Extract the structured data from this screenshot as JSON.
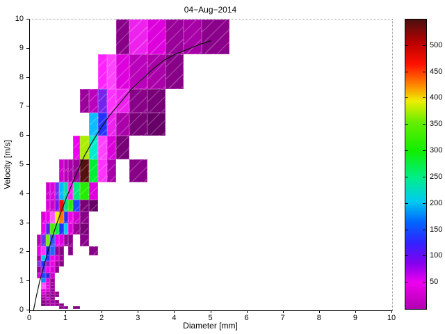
{
  "figure": {
    "title": "04−Aug−2014",
    "background": "#ffffff"
  },
  "axes": {
    "x": {
      "label": "Diameter [mm]",
      "range": [
        0,
        10
      ],
      "ticks": [
        0,
        1,
        2,
        3,
        4,
        5,
        6,
        7,
        8,
        9,
        10
      ]
    },
    "y": {
      "label": "Velocity [m/s]",
      "range": [
        0,
        10
      ],
      "ticks": [
        0,
        1,
        2,
        3,
        4,
        5,
        6,
        7,
        8,
        9,
        10
      ]
    }
  },
  "colorbar": {
    "range": [
      0,
      550
    ],
    "tick_values": [
      50,
      100,
      150,
      200,
      250,
      300,
      350,
      400,
      450,
      500
    ],
    "gradient_stops": [
      [
        0,
        "#B000B0"
      ],
      [
        50,
        "#EE00EE"
      ],
      [
        85,
        "#8800EE"
      ],
      [
        125,
        "#3322FF"
      ],
      [
        165,
        "#0066FF"
      ],
      [
        205,
        "#00CCEE"
      ],
      [
        250,
        "#00EE88"
      ],
      [
        300,
        "#11EE00"
      ],
      [
        355,
        "#66EE00"
      ],
      [
        395,
        "#EEEE00"
      ],
      [
        425,
        "#FF8800"
      ],
      [
        465,
        "#FF1100"
      ],
      [
        505,
        "#BB0000"
      ],
      [
        550,
        "#4A1010"
      ]
    ]
  },
  "chart_data": {
    "type": "heatmap",
    "title": "04−Aug−2014",
    "xlabel": "Diameter [mm]",
    "ylabel": "Velocity [m/s]",
    "xlim": [
      0,
      10
    ],
    "ylim": [
      0,
      10
    ],
    "value_range": [
      0,
      550
    ],
    "grid": "off",
    "legend": "colorbar-right",
    "d_bounds": [
      0.062,
      0.187,
      0.312,
      0.437,
      0.562,
      0.687,
      0.812,
      0.937,
      1.062,
      1.187,
      1.375,
      1.625,
      1.875,
      2.125,
      2.375,
      2.75,
      3.25,
      3.75,
      4.25,
      4.75,
      5.5
    ],
    "v_bounds": [
      0.05,
      0.15,
      0.25,
      0.35,
      0.45,
      0.55,
      0.65,
      0.75,
      0.85,
      0.95,
      1.1,
      1.3,
      1.5,
      1.7,
      1.9,
      2.2,
      2.6,
      3.0,
      3.4,
      3.8,
      4.4,
      5.2,
      6.0,
      6.8,
      7.6,
      8.8,
      10.4
    ],
    "cells": [
      [
        6,
        0,
        8,
        "#880088"
      ],
      [
        7,
        0,
        8,
        "#8B008B"
      ],
      [
        9,
        0,
        4,
        "#770077"
      ],
      [
        2,
        1,
        4,
        "#770077"
      ],
      [
        3,
        1,
        13,
        "#990099"
      ],
      [
        4,
        1,
        18,
        "#AA00AA"
      ],
      [
        5,
        1,
        8,
        "#880088"
      ],
      [
        6,
        1,
        8,
        "#880088"
      ],
      [
        2,
        2,
        8,
        "#880088"
      ],
      [
        3,
        2,
        13,
        "#990099"
      ],
      [
        4,
        2,
        13,
        "#990099"
      ],
      [
        5,
        2,
        8,
        "#880088"
      ],
      [
        2,
        3,
        13,
        "#990099"
      ],
      [
        3,
        3,
        33,
        "#CC00CC"
      ],
      [
        4,
        3,
        8,
        "#880088"
      ],
      [
        2,
        4,
        25,
        "#BB00BB"
      ],
      [
        3,
        4,
        13,
        "#990099"
      ],
      [
        4,
        4,
        8,
        "#880088"
      ],
      [
        5,
        4,
        8,
        "#880088"
      ],
      [
        2,
        5,
        40,
        "#DD00DD"
      ],
      [
        3,
        5,
        18,
        "#AA00AA"
      ],
      [
        4,
        5,
        13,
        "#990099"
      ],
      [
        5,
        5,
        8,
        "#880088"
      ],
      [
        2,
        6,
        48,
        "#EE00EE"
      ],
      [
        3,
        6,
        40,
        "#DD00DD"
      ],
      [
        4,
        6,
        13,
        "#990099"
      ],
      [
        2,
        7,
        62,
        "#FF55FF"
      ],
      [
        3,
        7,
        48,
        "#EE00EE"
      ],
      [
        4,
        7,
        13,
        "#990099"
      ],
      [
        2,
        8,
        58,
        "#FF44FF"
      ],
      [
        3,
        8,
        40,
        "#DD00DD"
      ],
      [
        4,
        8,
        13,
        "#990099"
      ],
      [
        2,
        9,
        160,
        "#0088FF"
      ],
      [
        3,
        9,
        40,
        "#DD00DD"
      ],
      [
        4,
        9,
        13,
        "#990099"
      ],
      [
        1,
        10,
        40,
        "#DD00DD"
      ],
      [
        2,
        10,
        138,
        "#2244FF"
      ],
      [
        3,
        10,
        115,
        "#3322DD"
      ],
      [
        4,
        10,
        33,
        "#CC00CC"
      ],
      [
        1,
        11,
        13,
        "#990099"
      ],
      [
        2,
        11,
        95,
        "#6633FF"
      ],
      [
        3,
        11,
        48,
        "#EE00EE"
      ],
      [
        4,
        11,
        40,
        "#DD00DD"
      ],
      [
        5,
        11,
        8,
        "#880088"
      ],
      [
        1,
        12,
        85,
        "#8833EE"
      ],
      [
        2,
        12,
        130,
        "#2233FF"
      ],
      [
        3,
        12,
        70,
        "#9911CC"
      ],
      [
        4,
        12,
        48,
        "#EE00EE"
      ],
      [
        5,
        12,
        13,
        "#990099"
      ],
      [
        6,
        12,
        8,
        "#880088"
      ],
      [
        1,
        13,
        18,
        "#AA00AA"
      ],
      [
        2,
        13,
        195,
        "#00CCEE"
      ],
      [
        3,
        13,
        130,
        "#2233FF"
      ],
      [
        4,
        13,
        48,
        "#EE00EE"
      ],
      [
        5,
        13,
        33,
        "#CC00CC"
      ],
      [
        6,
        13,
        13,
        "#990099"
      ],
      [
        1,
        14,
        48,
        "#EE00EE"
      ],
      [
        2,
        14,
        55,
        "#FF33FF"
      ],
      [
        3,
        14,
        120,
        "#2222EE"
      ],
      [
        4,
        14,
        148,
        "#2266FF"
      ],
      [
        5,
        14,
        13,
        "#990099"
      ],
      [
        6,
        14,
        8,
        "#880088"
      ],
      [
        8,
        14,
        8,
        "#880088"
      ],
      [
        11,
        14,
        8,
        "#880088"
      ],
      [
        1,
        15,
        25,
        "#BB00BB"
      ],
      [
        2,
        15,
        95,
        "#6633EE"
      ],
      [
        3,
        15,
        345,
        "#77EE00"
      ],
      [
        4,
        15,
        135,
        "#3355FF"
      ],
      [
        5,
        15,
        48,
        "#EE00EE"
      ],
      [
        6,
        15,
        40,
        "#DD00DD"
      ],
      [
        7,
        15,
        13,
        "#990099"
      ],
      [
        8,
        15,
        8,
        "#880088"
      ],
      [
        10,
        15,
        8,
        "#880088"
      ],
      [
        2,
        16,
        48,
        "#EE00EE"
      ],
      [
        3,
        16,
        90,
        "#5522EE"
      ],
      [
        4,
        16,
        320,
        "#44EE00"
      ],
      [
        5,
        16,
        280,
        "#00EE44"
      ],
      [
        6,
        16,
        130,
        "#2233FF"
      ],
      [
        7,
        16,
        195,
        "#00CCEE"
      ],
      [
        8,
        16,
        40,
        "#DD00DD"
      ],
      [
        9,
        16,
        13,
        "#990099"
      ],
      [
        10,
        16,
        4,
        "#770077"
      ],
      [
        2,
        17,
        40,
        "#DD00DD"
      ],
      [
        3,
        17,
        48,
        "#EE00EE"
      ],
      [
        4,
        17,
        62,
        "#FF55FF"
      ],
      [
        5,
        17,
        390,
        "#EEEE00"
      ],
      [
        6,
        17,
        415,
        "#FF7700"
      ],
      [
        7,
        17,
        125,
        "#2233EE"
      ],
      [
        8,
        17,
        48,
        "#EE00EE"
      ],
      [
        9,
        17,
        33,
        "#CC00CC"
      ],
      [
        10,
        17,
        8,
        "#880088"
      ],
      [
        3,
        18,
        40,
        "#DD00DD"
      ],
      [
        4,
        18,
        33,
        "#CC00CC"
      ],
      [
        5,
        18,
        88,
        "#7711EE"
      ],
      [
        6,
        18,
        455,
        "#EE1100"
      ],
      [
        7,
        18,
        250,
        "#00DD88"
      ],
      [
        8,
        18,
        305,
        "#22EE00"
      ],
      [
        9,
        18,
        138,
        "#2244FF"
      ],
      [
        10,
        18,
        4,
        "#770077"
      ],
      [
        11,
        18,
        3,
        "#660066"
      ],
      [
        3,
        19,
        33,
        "#CC00CC"
      ],
      [
        4,
        19,
        40,
        "#DD00DD"
      ],
      [
        5,
        19,
        95,
        "#6633EE"
      ],
      [
        6,
        19,
        178,
        "#00BBFF"
      ],
      [
        7,
        19,
        235,
        "#00DDAA"
      ],
      [
        8,
        19,
        50,
        "#EE22EE"
      ],
      [
        9,
        19,
        260,
        "#00EE77"
      ],
      [
        10,
        19,
        305,
        "#22EE00"
      ],
      [
        11,
        19,
        40,
        "#DD00DD"
      ],
      [
        6,
        20,
        33,
        "#CC00CC"
      ],
      [
        7,
        20,
        25,
        "#BB00BB"
      ],
      [
        8,
        20,
        18,
        "#AA00AA"
      ],
      [
        9,
        20,
        13,
        "#990099"
      ],
      [
        10,
        20,
        540,
        "#551111"
      ],
      [
        11,
        20,
        285,
        "#00EE33"
      ],
      [
        12,
        20,
        55,
        "#FF33FF"
      ],
      [
        13,
        20,
        18,
        "#AA00AA"
      ],
      [
        15,
        20,
        8,
        "#880088"
      ],
      [
        9,
        21,
        48,
        "#EE00EE"
      ],
      [
        10,
        21,
        365,
        "#AAEE00"
      ],
      [
        11,
        21,
        220,
        "#00EECC"
      ],
      [
        12,
        21,
        58,
        "#FF44FF"
      ],
      [
        13,
        21,
        40,
        "#DD00DD"
      ],
      [
        14,
        21,
        4,
        "#770077"
      ],
      [
        11,
        22,
        175,
        "#11BBFF"
      ],
      [
        12,
        22,
        130,
        "#2233FF"
      ],
      [
        13,
        22,
        50,
        "#EE22EE"
      ],
      [
        14,
        22,
        18,
        "#AA00AA"
      ],
      [
        15,
        22,
        4,
        "#770077"
      ],
      [
        16,
        22,
        3,
        "#660066"
      ],
      [
        10,
        23,
        13,
        "#990099"
      ],
      [
        11,
        23,
        25,
        "#BB00BB"
      ],
      [
        12,
        23,
        88,
        "#7722EE"
      ],
      [
        13,
        23,
        55,
        "#FF33FF"
      ],
      [
        14,
        23,
        50,
        "#EE22EE"
      ],
      [
        15,
        23,
        8,
        "#880088"
      ],
      [
        16,
        23,
        4,
        "#770077"
      ],
      [
        12,
        24,
        53,
        "#FF22FF"
      ],
      [
        13,
        24,
        58,
        "#FF44FF"
      ],
      [
        14,
        24,
        40,
        "#DD00DD"
      ],
      [
        15,
        24,
        25,
        "#BB00BB"
      ],
      [
        16,
        24,
        18,
        "#AA00AA"
      ],
      [
        17,
        24,
        8,
        "#880088"
      ],
      [
        14,
        25,
        8,
        "#880088"
      ],
      [
        15,
        25,
        50,
        "#EE22EE"
      ],
      [
        16,
        25,
        40,
        "#DD00DD"
      ],
      [
        17,
        25,
        13,
        "#990099"
      ],
      [
        18,
        25,
        16,
        "#A600A6"
      ],
      [
        19,
        25,
        6,
        "#8A008A"
      ]
    ],
    "fit_curve": {
      "name": "terminal-velocity-fit",
      "color": "#111111",
      "points": [
        [
          0.1,
          0.0
        ],
        [
          0.18,
          0.5
        ],
        [
          0.27,
          1.0
        ],
        [
          0.38,
          1.5
        ],
        [
          0.48,
          1.95
        ],
        [
          0.6,
          2.45
        ],
        [
          0.72,
          2.9
        ],
        [
          0.85,
          3.35
        ],
        [
          1.0,
          3.85
        ],
        [
          1.15,
          4.3
        ],
        [
          1.3,
          4.75
        ],
        [
          1.5,
          5.3
        ],
        [
          1.7,
          5.75
        ],
        [
          1.95,
          6.25
        ],
        [
          2.2,
          6.7
        ],
        [
          2.5,
          7.15
        ],
        [
          2.8,
          7.6
        ],
        [
          3.1,
          7.95
        ],
        [
          3.4,
          8.3
        ],
        [
          3.7,
          8.6
        ],
        [
          4.0,
          8.8
        ],
        [
          4.4,
          9.0
        ],
        [
          4.7,
          9.15
        ],
        [
          5.0,
          9.27
        ]
      ]
    }
  }
}
